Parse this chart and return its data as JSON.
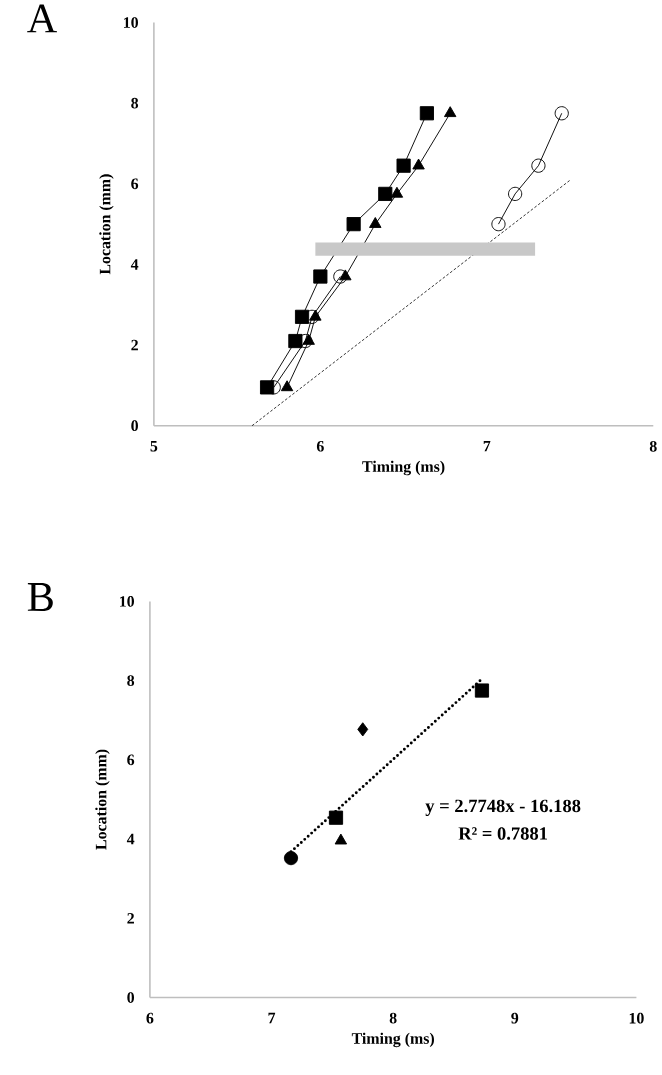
{
  "chart_data": [
    {
      "type": "line",
      "title": "A",
      "xlabel": "Timing (ms)",
      "ylabel": "Location (mm)",
      "xlim": [
        5,
        8
      ],
      "ylim": [
        0,
        10
      ],
      "xticks": [
        5,
        6,
        7,
        8
      ],
      "yticks": [
        0,
        2,
        4,
        6,
        8,
        10
      ],
      "series": [
        {
          "color": "#000000",
          "marker": "square",
          "line_style": "solid",
          "x": [
            5.68,
            5.85,
            5.89,
            6.0,
            6.2,
            6.39,
            6.5,
            6.64
          ],
          "values": [
            0.95,
            2.1,
            2.7,
            3.7,
            5.0,
            5.75,
            6.45,
            7.75
          ]
        },
        {
          "color": "#000000",
          "marker": "triangle",
          "line_style": "solid",
          "x": [
            5.8,
            5.93,
            5.97,
            6.15,
            6.33,
            6.46,
            6.59,
            6.78
          ],
          "values": [
            0.95,
            2.1,
            2.7,
            3.7,
            5.0,
            5.75,
            6.45,
            7.75
          ]
        },
        {
          "color": "#000000",
          "marker": "circle open",
          "line_style": "solid",
          "x": [
            5.72,
            5.91,
            5.95,
            6.12
          ],
          "values": [
            0.95,
            2.1,
            2.7,
            3.7
          ]
        },
        {
          "color": "#000000",
          "marker": "circle open",
          "line_style": "solid",
          "x": [
            7.07,
            7.17,
            7.31,
            7.45
          ],
          "values": [
            5.0,
            5.75,
            6.45,
            7.75
          ]
        },
        {
          "color": "#000000",
          "marker": "none",
          "line_style": "dashed",
          "x": [
            5.59,
            7.5
          ],
          "values": [
            0.0,
            6.09
          ]
        },
        {
          "color": "#c8c8c8",
          "marker": "none",
          "line_style": "solid",
          "x": [
            5.97,
            7.29
          ],
          "values": [
            4.38,
            4.38
          ]
        }
      ]
    },
    {
      "type": "scatter",
      "title": "B",
      "xlabel": "Timing (ms)",
      "ylabel": "Location (mm)",
      "xlim": [
        6,
        10
      ],
      "ylim": [
        0,
        10
      ],
      "xticks": [
        6,
        7,
        8,
        9,
        10
      ],
      "yticks": [
        0,
        2,
        4,
        6,
        8,
        10
      ],
      "annotations": [
        "y = 2.7748x - 16.188",
        "R² = 0.7881"
      ],
      "series": [
        {
          "color": "#000000",
          "marker": "circle",
          "x": [
            7.16
          ],
          "values": [
            3.52
          ]
        },
        {
          "color": "#000000",
          "marker": "square",
          "x": [
            7.53
          ],
          "values": [
            4.54
          ]
        },
        {
          "color": "#000000",
          "marker": "triangle",
          "x": [
            7.57
          ],
          "values": [
            3.96
          ]
        },
        {
          "color": "#000000",
          "marker": "diamond",
          "x": [
            7.75
          ],
          "values": [
            6.77
          ]
        },
        {
          "color": "#000000",
          "marker": "square",
          "x": [
            8.73
          ],
          "values": [
            7.75
          ]
        },
        {
          "type": "line",
          "color": "#000000",
          "marker": "none",
          "line_style": "dotted",
          "x": [
            7.16,
            8.73
          ],
          "values": [
            3.68,
            8.04
          ]
        }
      ]
    }
  ]
}
